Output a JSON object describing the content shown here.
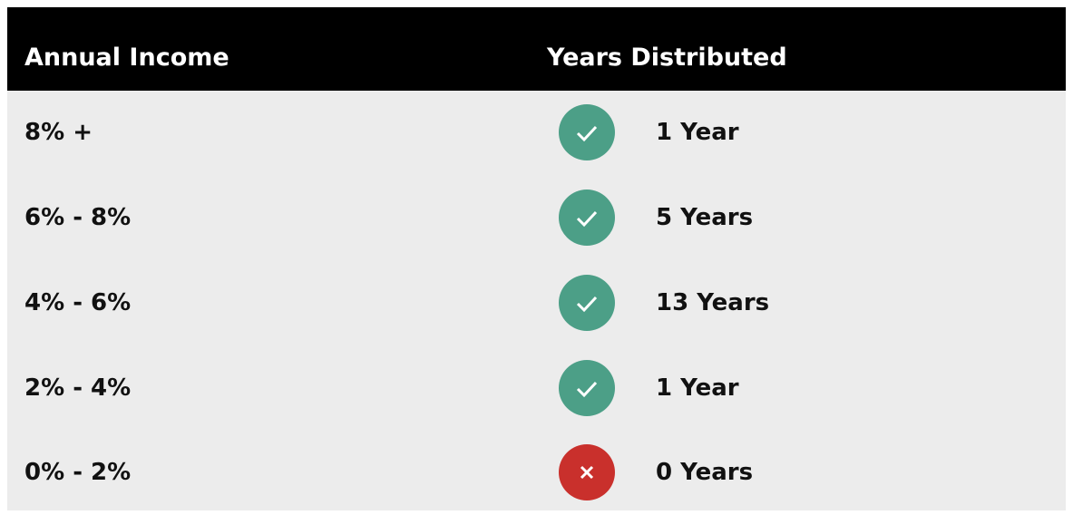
{
  "table": {
    "header": [
      "Annual Income",
      "Years Distributed"
    ],
    "rows": [
      [
        "8% +",
        "1 Year"
      ],
      [
        "6% - 8%",
        "5 Years"
      ],
      [
        "4% - 6%",
        "13 Years"
      ],
      [
        "2% - 4%",
        "1 Year"
      ],
      [
        "0% - 2%",
        "0 Years"
      ]
    ]
  }
}
